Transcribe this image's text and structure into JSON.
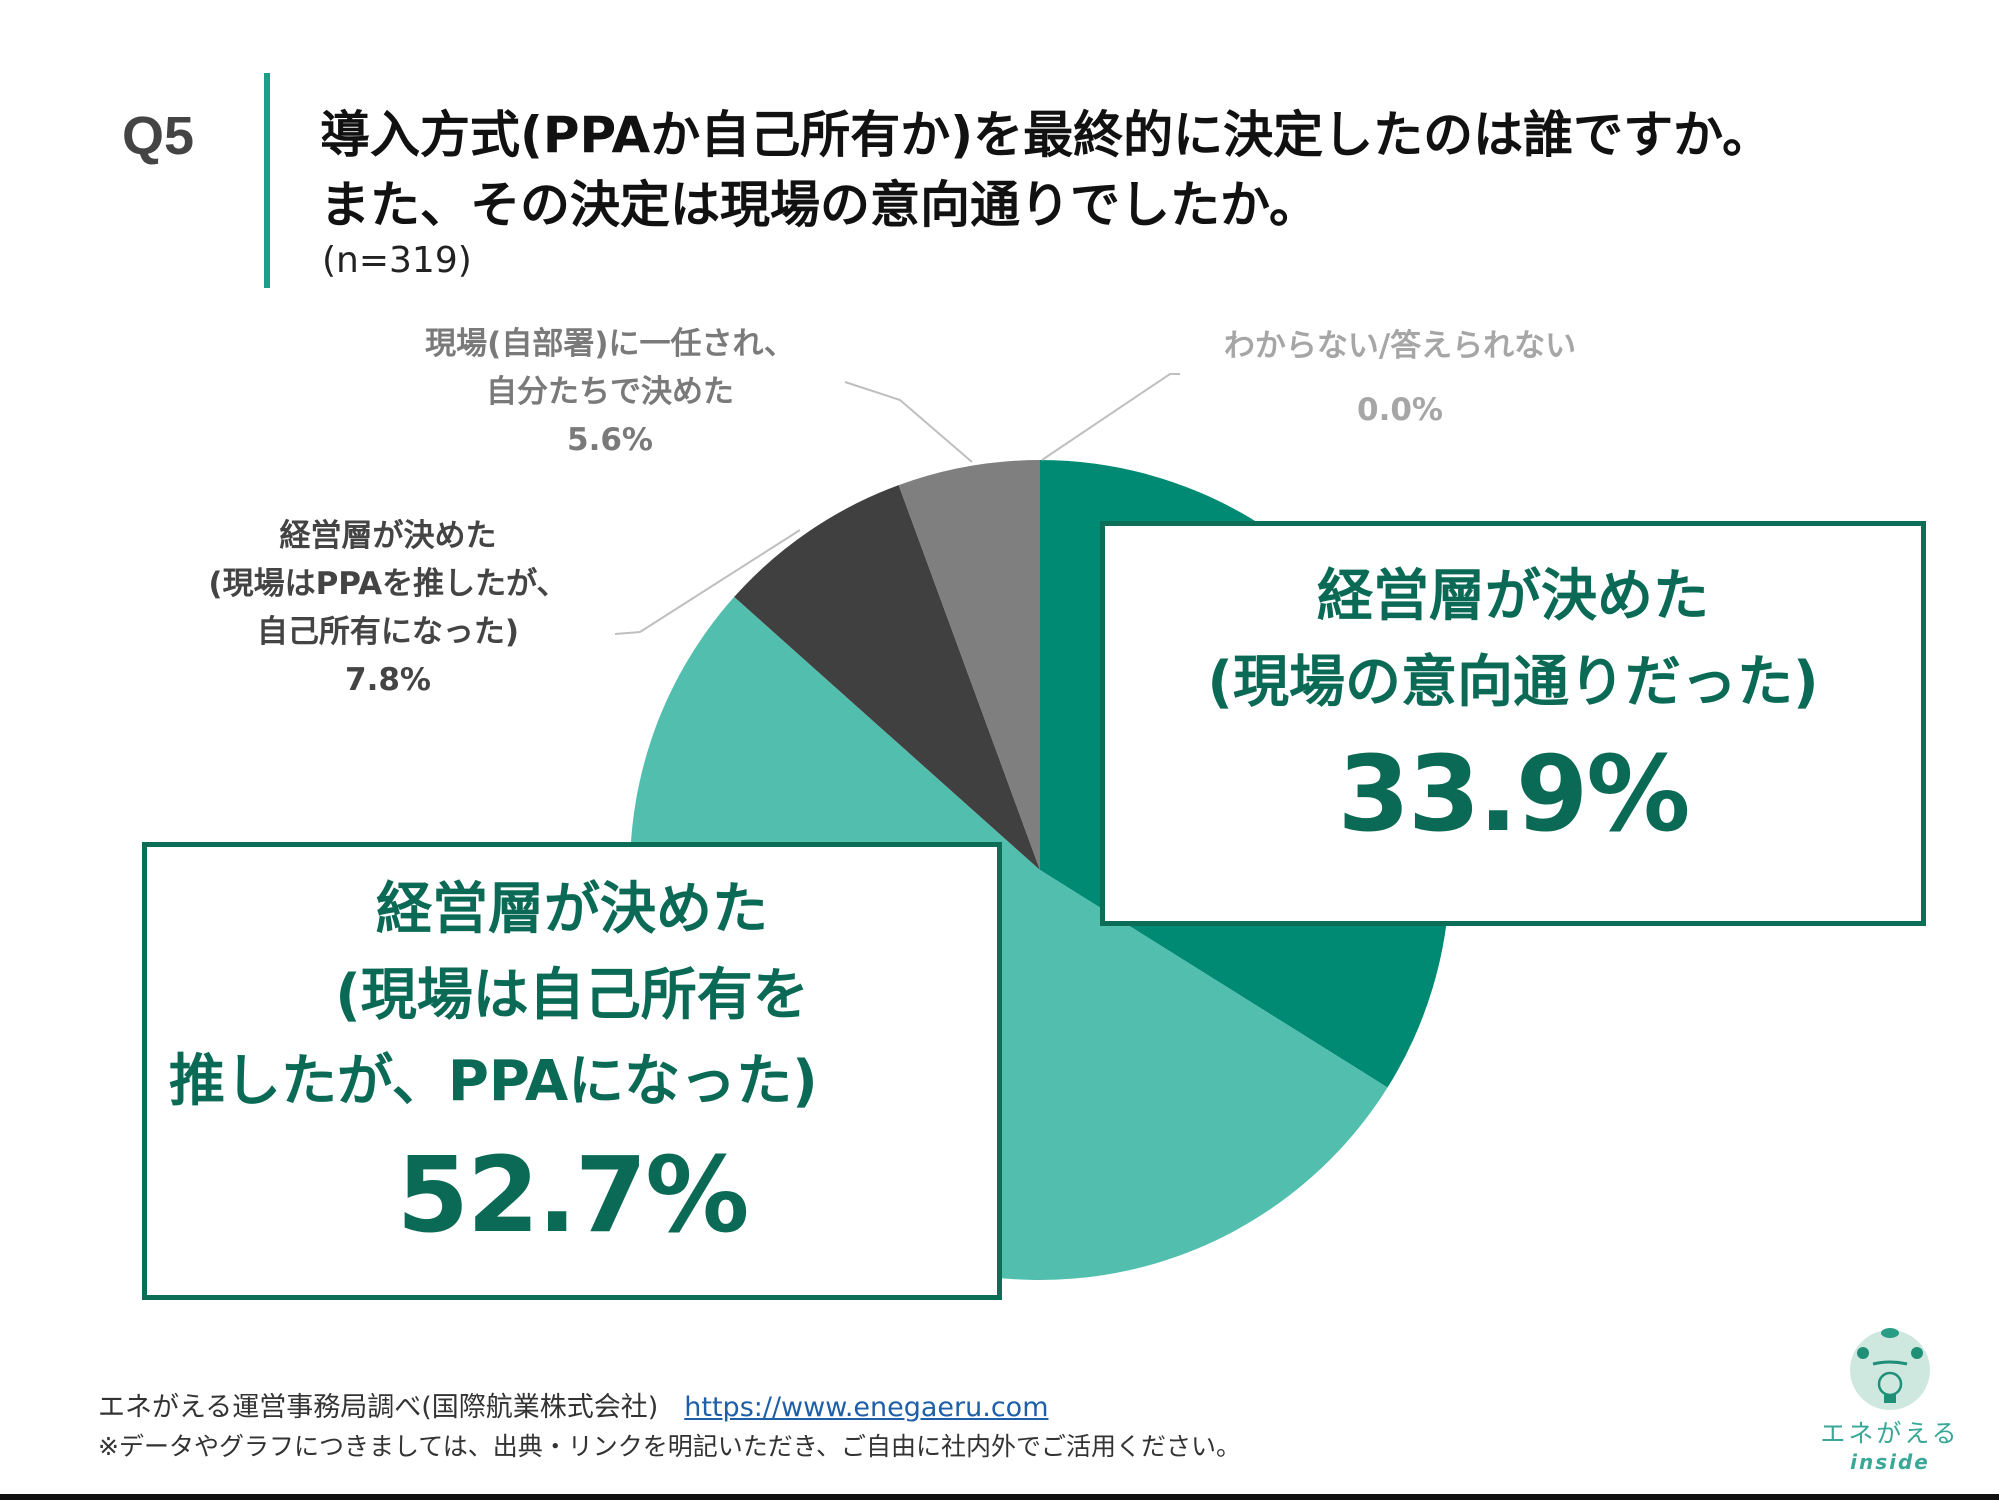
{
  "header": {
    "question_number": "Q5",
    "title_line1": "導入方式(PPAか自己所有か)を最終的に決定したのは誰ですか。",
    "title_line2": "また、その決定は現場の意向通りでしたか。",
    "sample_size": "(n=319)"
  },
  "colors": {
    "accent_bar": "#1aa08a",
    "callout_border": "#0c6e57",
    "callout_text": "#0b6a55",
    "slice_dark_teal": "#008a73",
    "slice_light_teal": "#52bfae",
    "slice_dark_gray": "#404040",
    "slice_gray": "#7f7f7f",
    "leader_line": "#bfbfbf"
  },
  "chart_data": {
    "type": "pie",
    "title": "導入方式(PPAか自己所有か)を最終的に決定したのは誰ですか。また、その決定は現場の意向通りでしたか。",
    "n": 319,
    "start_angle": "12 o'clock, clockwise",
    "categories": [
      "経営層が決めた(現場の意向通りだった)",
      "経営層が決めた(現場は自己所有を推したが、PPAになった)",
      "経営層が決めた(現場はPPAを推したが、自己所有になった)",
      "現場(自部署)に一任され、自分たちで決めた",
      "わからない/答えられない"
    ],
    "values": [
      33.9,
      52.7,
      7.8,
      5.6,
      0.0
    ],
    "unit": "%",
    "slice_colors": [
      "#008a73",
      "#52bfae",
      "#404040",
      "#7f7f7f",
      "#bfbfbf"
    ],
    "legend": "none (direct labels)"
  },
  "labels": {
    "callout_main_right": {
      "line1": "経営層が決めた",
      "line2": "(現場の意向通りだった)",
      "value": "33.9%"
    },
    "callout_main_left": {
      "line1": "経営層が決めた",
      "line2": "(現場は自己所有を",
      "line3": "推したが、PPAになった)",
      "value": "52.7%"
    },
    "ext_ppa_to_own": {
      "line1": "経営層が決めた",
      "line2": "(現場はPPAを推したが、",
      "line3": "自己所有になった)",
      "value": "7.8%"
    },
    "ext_site": {
      "line1": "現場(自部署)に一任され、",
      "line2": "自分たちで決めた",
      "value": "5.6%"
    },
    "ext_unknown": {
      "line1": "わからない/答えられない",
      "value": "0.0%"
    }
  },
  "footer": {
    "source": "エネがえる運営事務局調べ(国際航業株式会社)",
    "link": "https://www.enegaeru.com",
    "note": "※データやグラフにつきましては、出典・リンクを明記いただき、ご自由に社内外でご活用ください。"
  },
  "logo": {
    "name": "エネがえる",
    "sub": "inside"
  }
}
